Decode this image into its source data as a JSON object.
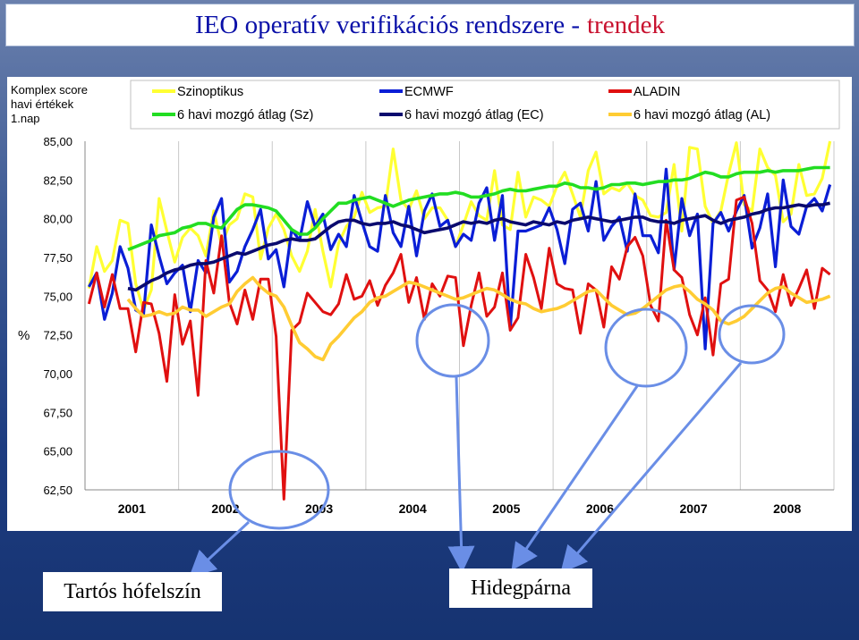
{
  "title": {
    "main": "IEO operatív verifikációs rendszere -",
    "accent": "trendek"
  },
  "callouts": {
    "left": "Tartós hófelszín",
    "right": "Hidegpárna"
  },
  "colors": {
    "szinoptikus": "#ffff33",
    "ecmwf": "#0a1ed6",
    "aladin": "#e01010",
    "sz_avg": "#22dd22",
    "ec_avg": "#0a0a6e",
    "al_avg": "#ffcc33",
    "circle": "#6a8ee6",
    "title": "#0a10a8",
    "title_accent": "#c8102e"
  },
  "chart_data": {
    "type": "line",
    "corner_label": [
      "Komplex score",
      "havi értékek",
      "1.nap"
    ],
    "ylabel": "%",
    "ylim": [
      62.5,
      85
    ],
    "yticks": [
      "85,00",
      "82,50",
      "80,00",
      "77,50",
      "75,00",
      "72,50",
      "70,00",
      "67,50",
      "65,00",
      "62,50"
    ],
    "year_labels": [
      "2001",
      "2002",
      "2003",
      "2004",
      "2005",
      "2006",
      "2007",
      "2008"
    ],
    "x_start_month": 0,
    "months": 96,
    "legend_position": "top",
    "series": [
      {
        "name": "Szinoptikus",
        "color_key": "szinoptikus",
        "width": 3.2,
        "values": [
          75.5,
          78.2,
          76.6,
          77.3,
          79.9,
          79.7,
          75.8,
          74.1,
          75.4,
          81.3,
          79.2,
          77.2,
          78.8,
          79.4,
          78.9,
          77.6,
          80.5,
          78.3,
          79.6,
          80.0,
          81.6,
          81.4,
          77.4,
          79.4,
          80.3,
          79.3,
          77.6,
          76.6,
          77.9,
          80.6,
          77.9,
          75.6,
          78.4,
          79.5,
          80.1,
          81.7,
          80.4,
          80.7,
          80.8,
          84.5,
          81.2,
          80.6,
          81.8,
          80.0,
          80.7,
          80.7,
          79.9,
          78.2,
          79.6,
          81.1,
          80.2,
          79.9,
          83.1,
          79.6,
          79.3,
          83.0,
          80.1,
          81.4,
          81.2,
          80.8,
          82.1,
          83.0,
          81.6,
          80.1,
          83.1,
          84.3,
          81.6,
          82.0,
          81.8,
          82.3,
          81.5,
          81.2,
          80.2,
          80.1,
          80.4,
          83.5,
          79.2,
          84.6,
          84.5,
          80.8,
          79.7,
          80.5,
          82.9,
          84.9,
          80.9,
          80.5,
          84.5,
          83.3,
          82.8,
          79.8,
          80.3,
          83.5,
          81.5,
          81.6,
          82.6,
          85.0
        ]
      },
      {
        "name": "ECMWF",
        "color_key": "ecmwf",
        "width": 3.2,
        "values": [
          75.6,
          76.5,
          73.5,
          75.2,
          78.2,
          76.8,
          74.1,
          73.8,
          79.6,
          77.6,
          75.8,
          76.5,
          77.0,
          74.0,
          77.3,
          76.5,
          80.1,
          81.3,
          75.9,
          76.6,
          78.2,
          79.3,
          80.6,
          77.4,
          78.0,
          75.6,
          79.3,
          78.6,
          81.1,
          79.5,
          80.3,
          78.0,
          79.0,
          78.2,
          81.5,
          79.8,
          78.2,
          77.9,
          81.5,
          79.1,
          78.2,
          80.8,
          77.6,
          80.5,
          81.6,
          79.5,
          79.9,
          78.2,
          79.0,
          78.6,
          81.0,
          82.0,
          78.6,
          81.5,
          72.9,
          79.2,
          79.2,
          79.4,
          79.6,
          80.7,
          79.3,
          77.1,
          80.6,
          81.0,
          79.2,
          82.4,
          78.6,
          79.5,
          80.1,
          77.9,
          81.6,
          78.9,
          78.9,
          77.8,
          83.2,
          76.7,
          81.3,
          78.9,
          80.3,
          71.6,
          79.7,
          80.4,
          79.2,
          80.5,
          81.5,
          78.1,
          79.4,
          81.6,
          76.9,
          82.5,
          79.5,
          79.0,
          80.8,
          81.3,
          80.5,
          82.2
        ]
      },
      {
        "name": "ALADIN",
        "color_key": "aladin",
        "width": 3.0,
        "values": [
          74.5,
          76.5,
          74.3,
          76.4,
          74.2,
          74.2,
          71.4,
          74.6,
          74.5,
          72.6,
          69.5,
          75.1,
          71.9,
          73.4,
          68.6,
          77.3,
          75.2,
          78.9,
          74.6,
          73.2,
          75.4,
          73.5,
          76.1,
          76.1,
          72.4,
          61.9,
          72.8,
          73.3,
          75.2,
          74.6,
          74.0,
          73.8,
          74.5,
          76.4,
          74.8,
          75.0,
          76.0,
          74.4,
          75.7,
          76.5,
          77.7,
          74.6,
          76.2,
          73.5,
          75.8,
          75.0,
          76.3,
          76.2,
          71.8,
          74.4,
          76.5,
          73.7,
          74.3,
          76.5,
          72.8,
          73.6,
          77.7,
          76.2,
          74.2,
          78.1,
          75.8,
          75.5,
          75.4,
          72.6,
          75.8,
          75.4,
          73.0,
          76.9,
          76.1,
          78.2,
          78.8,
          77.6,
          74.4,
          73.4,
          79.9,
          76.7,
          76.2,
          73.8,
          72.5,
          74.9,
          71.2,
          75.8,
          76.1,
          81.2,
          81.4,
          79.7,
          76.0,
          75.4,
          74.0,
          76.4,
          74.4,
          75.5,
          76.7,
          74.2,
          76.8,
          76.4
        ]
      },
      {
        "name": "6 havi mozgó átlag (Sz)",
        "color_key": "sz_avg",
        "width": 3.6,
        "start": 5,
        "values": [
          78.0,
          78.2,
          78.4,
          78.6,
          78.9,
          79.0,
          79.1,
          79.4,
          79.5,
          79.7,
          79.7,
          79.5,
          79.4,
          80.0,
          80.6,
          80.9,
          80.9,
          80.8,
          80.7,
          80.5,
          79.9,
          79.3,
          79.0,
          79.0,
          79.4,
          80.0,
          80.5,
          81.0,
          81.0,
          81.2,
          81.3,
          81.4,
          81.2,
          81.0,
          80.8,
          81.0,
          81.2,
          81.3,
          81.4,
          81.5,
          81.6,
          81.6,
          81.7,
          81.6,
          81.4,
          81.4,
          81.5,
          81.6,
          81.8,
          81.9,
          81.8,
          81.8,
          81.9,
          82.0,
          82.1,
          82.1,
          82.3,
          82.2,
          82.0,
          82.0,
          81.9,
          82.0,
          82.2,
          82.2,
          82.3,
          82.3,
          82.2,
          82.3,
          82.4,
          82.4,
          82.5,
          82.5,
          82.6,
          82.8,
          83.0,
          82.9,
          82.7,
          82.7,
          82.9,
          83.0,
          83.0,
          83.0,
          83.1,
          83.0,
          83.1,
          83.1,
          83.1,
          83.2,
          83.3,
          83.3,
          83.3
        ]
      },
      {
        "name": "6 havi mozgó átlag (EC)",
        "color_key": "ec_avg",
        "width": 3.6,
        "start": 5,
        "values": [
          75.5,
          75.4,
          75.7,
          76.0,
          76.2,
          76.5,
          76.7,
          76.8,
          77.0,
          77.1,
          77.1,
          77.2,
          77.4,
          77.6,
          77.8,
          77.7,
          77.9,
          78.1,
          78.3,
          78.4,
          78.6,
          78.7,
          78.6,
          78.6,
          78.7,
          79.1,
          79.5,
          79.8,
          79.9,
          79.9,
          79.7,
          79.6,
          79.7,
          79.7,
          79.8,
          79.6,
          79.5,
          79.3,
          79.1,
          79.2,
          79.3,
          79.4,
          79.6,
          79.8,
          79.7,
          79.8,
          79.7,
          79.9,
          80.0,
          79.8,
          79.7,
          79.6,
          79.8,
          79.7,
          79.6,
          79.8,
          79.7,
          79.9,
          80.0,
          80.1,
          80.0,
          79.9,
          79.8,
          79.9,
          80.0,
          80.1,
          80.1,
          79.9,
          79.8,
          79.8,
          79.7,
          79.9,
          80.0,
          80.1,
          80.2,
          79.9,
          79.7,
          79.9,
          80.0,
          80.1,
          80.3,
          80.4,
          80.6,
          80.7,
          80.7,
          80.8,
          80.9,
          80.8,
          80.9,
          80.9,
          81.0
        ]
      },
      {
        "name": "6 havi mozgó átlag (AL)",
        "color_key": "al_avg",
        "width": 3.6,
        "start": 5,
        "values": [
          74.8,
          74.2,
          73.7,
          73.8,
          74.0,
          73.8,
          73.9,
          74.3,
          74.1,
          74.1,
          73.7,
          74.0,
          74.3,
          74.5,
          75.3,
          75.8,
          76.2,
          75.6,
          75.2,
          75.0,
          74.3,
          73.1,
          72.0,
          71.6,
          71.1,
          70.9,
          71.9,
          72.4,
          73.0,
          73.6,
          74.0,
          74.6,
          74.9,
          75.0,
          75.3,
          75.6,
          75.9,
          75.8,
          75.6,
          75.4,
          75.2,
          75.0,
          74.8,
          74.9,
          75.1,
          75.3,
          75.5,
          75.4,
          75.1,
          74.8,
          74.6,
          74.5,
          74.2,
          74.0,
          74.1,
          74.2,
          74.4,
          74.7,
          75.0,
          75.3,
          75.4,
          74.9,
          74.4,
          74.1,
          73.8,
          73.9,
          74.2,
          74.6,
          75.0,
          75.4,
          75.6,
          75.7,
          75.3,
          74.8,
          74.5,
          74.1,
          73.4,
          73.2,
          73.4,
          73.7,
          74.2,
          74.7,
          75.2,
          75.5,
          75.6,
          75.2,
          74.9,
          74.6,
          74.7,
          74.8,
          75.0
        ]
      }
    ],
    "legend": [
      {
        "label": "Szinoptikus",
        "color_key": "szinoptikus"
      },
      {
        "label": "ECMWF",
        "color_key": "ecmwf"
      },
      {
        "label": "ALADIN",
        "color_key": "aladin"
      },
      {
        "label": "6 havi mozgó átlag (Sz)",
        "color_key": "sz_avg"
      },
      {
        "label": "6 havi mozgó átlag (EC)",
        "color_key": "ec_avg"
      },
      {
        "label": "6 havi mozgó átlag (AL)",
        "color_key": "al_avg"
      }
    ]
  }
}
